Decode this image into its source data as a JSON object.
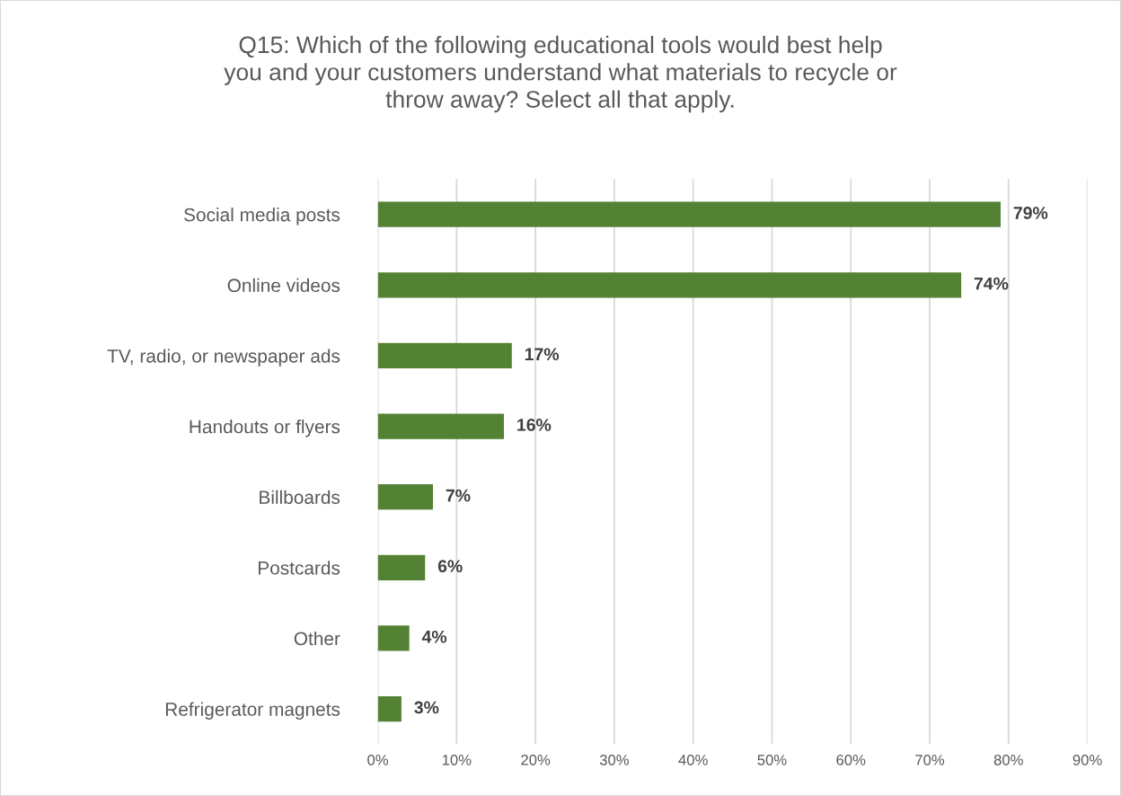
{
  "chart_data": {
    "type": "bar",
    "orientation": "horizontal",
    "title": "Q15: Which of the following educational tools would best help\nyou and your customers understand what materials to recycle or\nthrow away? Select all that apply.",
    "categories": [
      "Social media posts",
      "Online videos",
      "TV, radio, or newspaper ads",
      "Handouts or flyers",
      "Billboards",
      "Postcards",
      "Other",
      "Refrigerator magnets"
    ],
    "values": [
      79,
      74,
      17,
      16,
      7,
      6,
      4,
      3
    ],
    "value_labels": [
      "79%",
      "74%",
      "17%",
      "16%",
      "7%",
      "6%",
      "4%",
      "3%"
    ],
    "color": "#548235",
    "xlim": [
      0,
      90
    ],
    "xticks": [
      {
        "value": 0,
        "label": "0%"
      },
      {
        "value": 10,
        "label": "10%"
      },
      {
        "value": 20,
        "label": "20%"
      },
      {
        "value": 30,
        "label": "30%"
      },
      {
        "value": 40,
        "label": "40%"
      },
      {
        "value": 50,
        "label": "50%"
      },
      {
        "value": 60,
        "label": "60%"
      },
      {
        "value": 70,
        "label": "70%"
      },
      {
        "value": 80,
        "label": "80%"
      },
      {
        "value": 90,
        "label": "90%"
      }
    ],
    "grid": "x"
  }
}
